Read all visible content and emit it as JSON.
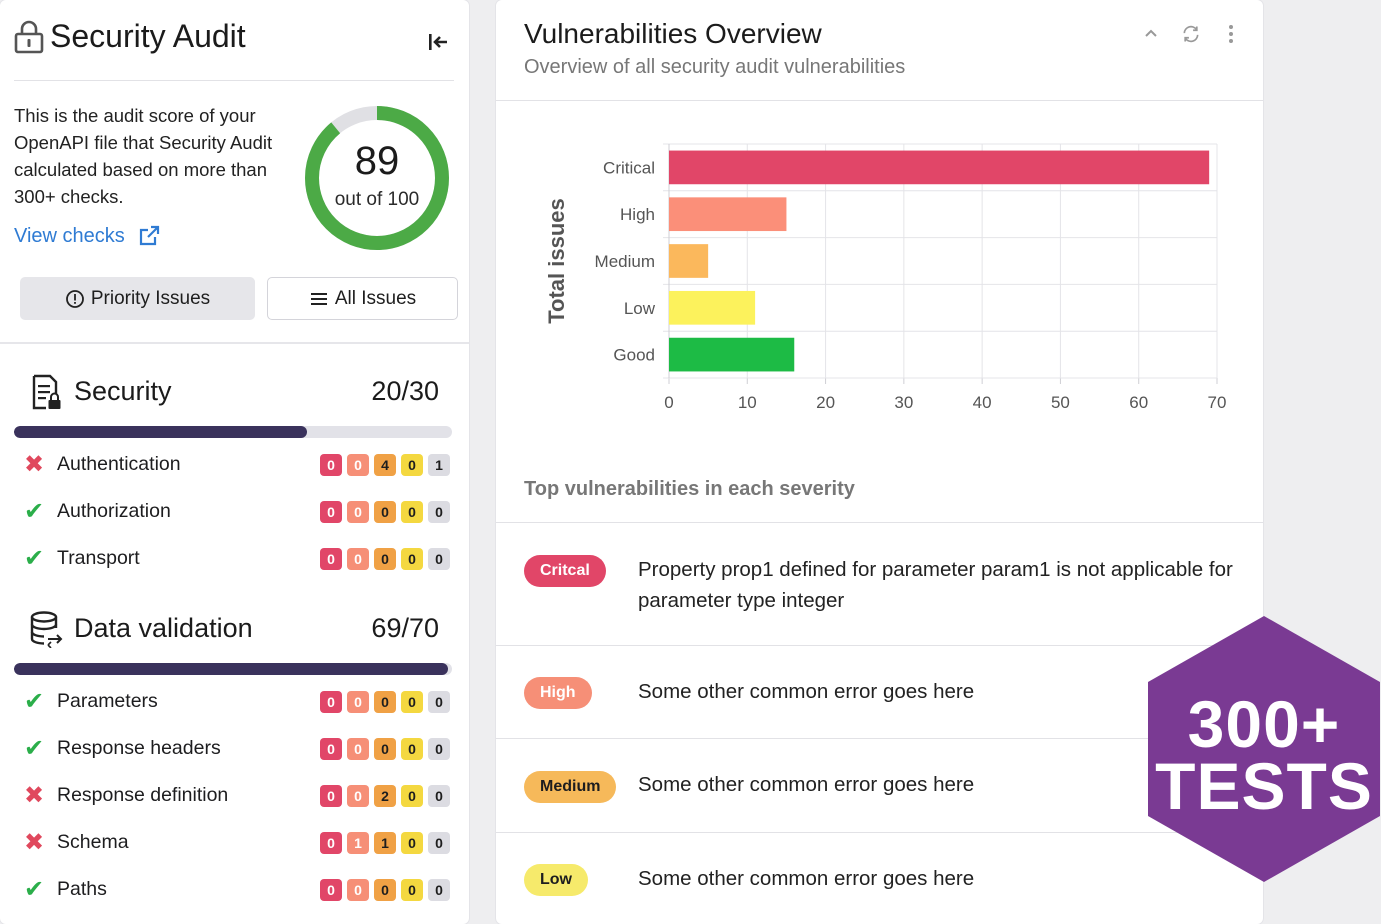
{
  "audit": {
    "title": "Security Audit",
    "description": "This is the audit score of your OpenAPI file that Security Audit calculated based on more than 300+ checks.",
    "view_checks": "View checks",
    "score": "89",
    "score_suffix": "out of 100",
    "score_fraction": 0.89,
    "priority_button": "Priority Issues",
    "all_button": "All Issues"
  },
  "sections": [
    {
      "title": "Security",
      "score": "20/30",
      "progress": 0.67,
      "checks": [
        {
          "name": "Authentication",
          "status": "fail",
          "counts": [
            "0",
            "0",
            "4",
            "0",
            "1"
          ]
        },
        {
          "name": "Authorization",
          "status": "pass",
          "counts": [
            "0",
            "0",
            "0",
            "0",
            "0"
          ]
        },
        {
          "name": "Transport",
          "status": "pass",
          "counts": [
            "0",
            "0",
            "0",
            "0",
            "0"
          ]
        }
      ]
    },
    {
      "title": "Data validation",
      "score": "69/70",
      "progress": 0.99,
      "checks": [
        {
          "name": "Parameters",
          "status": "pass",
          "counts": [
            "0",
            "0",
            "0",
            "0",
            "0"
          ]
        },
        {
          "name": "Response headers",
          "status": "pass",
          "counts": [
            "0",
            "0",
            "0",
            "0",
            "0"
          ]
        },
        {
          "name": "Response definition",
          "status": "fail",
          "counts": [
            "0",
            "0",
            "2",
            "0",
            "0"
          ]
        },
        {
          "name": "Schema",
          "status": "fail",
          "counts": [
            "0",
            "1",
            "1",
            "0",
            "0"
          ]
        },
        {
          "name": "Paths",
          "status": "pass",
          "counts": [
            "0",
            "0",
            "0",
            "0",
            "0"
          ]
        }
      ]
    }
  ],
  "overview": {
    "title": "Vulnerabilities Overview",
    "subtitle": "Overview of all security audit vulnerabilities",
    "top_heading": "Top vulnerabilities in each severity",
    "vulnerabilities": [
      {
        "severity": "Critcal",
        "class": "critical",
        "text": "Property prop1 defined for parameter param1 is not applicable for parameter type integer"
      },
      {
        "severity": "High",
        "class": "high",
        "text": "Some other common error goes here"
      },
      {
        "severity": "Medium",
        "class": "medium",
        "text": "Some other common error goes here"
      },
      {
        "severity": "Low",
        "class": "low",
        "text": "Some other common error goes here"
      }
    ]
  },
  "chart_data": {
    "type": "bar",
    "orientation": "horizontal",
    "categories": [
      "Critical",
      "High",
      "Medium",
      "Low",
      "Good"
    ],
    "values": [
      69,
      15,
      5,
      11,
      16
    ],
    "colors": [
      "#e14668",
      "#fb8f79",
      "#fbb85c",
      "#fcf25c",
      "#1dbb45"
    ],
    "ylabel": "Total issues",
    "xlabel": "",
    "xlim": [
      0,
      70
    ],
    "xticks": [
      0,
      10,
      20,
      30,
      40,
      50,
      60,
      70
    ],
    "grid": true
  },
  "badge": {
    "line1": "300+",
    "line2": "TESTS",
    "color": "#7a3a93"
  },
  "colors": {
    "critical": "#e14668",
    "high": "#f68f77",
    "medium": "#f0a145",
    "low": "#f4d840",
    "good": "#2bae4a",
    "progress": "#3a325c",
    "link": "#2f7bd3"
  }
}
